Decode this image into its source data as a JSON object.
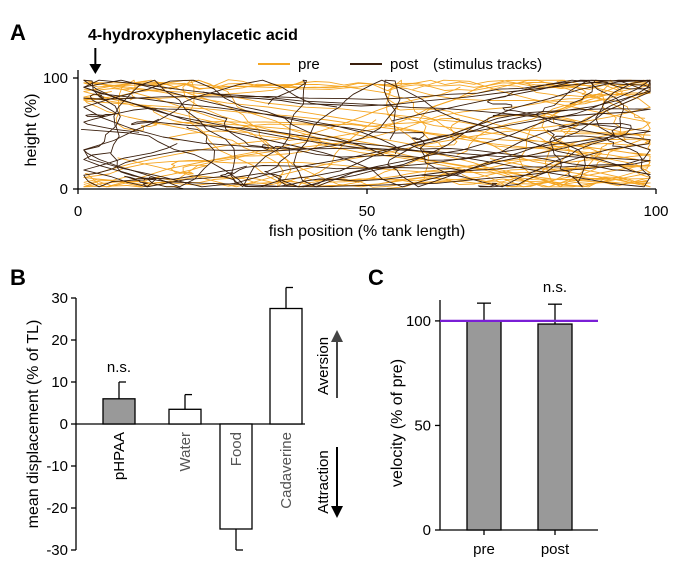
{
  "chart_data": [
    {
      "panel": "A",
      "type": "line",
      "title": "4-hydroxyphenylacetic acid",
      "xlabel": "fish position (% tank length)",
      "ylabel": "height (%)",
      "xlim": [
        0,
        100
      ],
      "ylim": [
        0,
        100
      ],
      "xticks": [
        "0",
        "50",
        "100"
      ],
      "yticks": [
        "0",
        "100"
      ],
      "legend_placement": "top-right",
      "legend_suffix": "(stimulus tracks)",
      "stimulus_marker_x": 3,
      "series": [
        {
          "name": "pre",
          "color": "#f5a623"
        },
        {
          "name": "post",
          "color": "#3a1f0d"
        }
      ]
    },
    {
      "panel": "B",
      "type": "bar",
      "ylabel": "mean displacement (% of TL)",
      "ylim": [
        -30,
        30
      ],
      "yticks": [
        "30",
        "20",
        "10",
        "0",
        "-10",
        "-20",
        "-30"
      ],
      "categories": [
        "pHPAA",
        "Water",
        "Food",
        "Cadaverine"
      ],
      "values": [
        6,
        3.5,
        -25,
        27.5
      ],
      "errors": [
        4,
        3.5,
        5,
        5
      ],
      "fills": [
        "#999999",
        "#ffffff",
        "#ffffff",
        "#ffffff"
      ],
      "annotations": [
        {
          "category": "pHPAA",
          "text": "n.s."
        }
      ],
      "direction_labels": {
        "up": "Aversion",
        "down": "Attraction"
      }
    },
    {
      "panel": "C",
      "type": "bar",
      "ylabel": "velocity (% of pre)",
      "ylim": [
        0,
        110
      ],
      "yticks": [
        "0",
        "50",
        "100"
      ],
      "categories": [
        "pre",
        "post"
      ],
      "values": [
        100,
        98.5
      ],
      "errors": [
        8.5,
        9.5
      ],
      "reference_line": 100,
      "reference_color": "#7a1fd6",
      "annotations": [
        {
          "category": "post",
          "text": "n.s."
        }
      ]
    }
  ]
}
